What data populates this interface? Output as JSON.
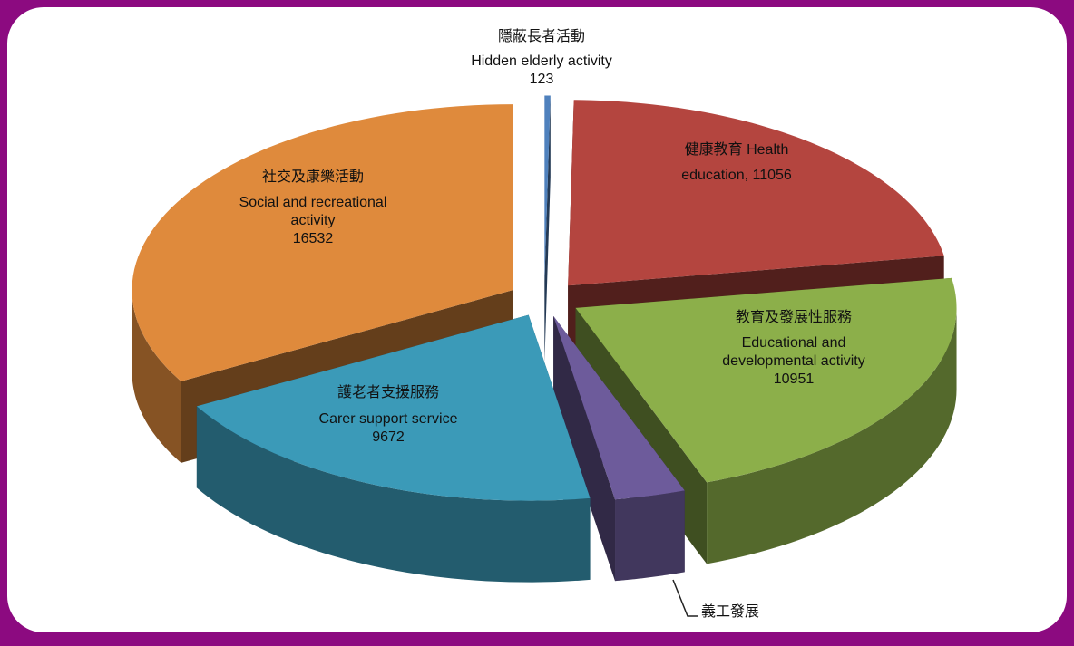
{
  "chart_data": {
    "type": "pie",
    "slices": [
      {
        "lines": [
          "隱蔽長者活動",
          "Hidden elderly activity"
        ],
        "value": 123,
        "value_label": "123",
        "color": "#4f81bd"
      },
      {
        "lines": [
          "健康教育 Health",
          "education,"
        ],
        "value": 11056,
        "value_label": "11056",
        "color": "#b4453f"
      },
      {
        "lines": [
          "教育及發展性服務",
          "Educational and",
          "developmental activity"
        ],
        "value": 10951,
        "value_label": "10951",
        "color": "#8caf4a"
      },
      {
        "lines": [
          "義工發展"
        ],
        "value": 1500,
        "color": "#6d5b9b"
      },
      {
        "lines": [
          "護老者支援服務",
          "Carer support service"
        ],
        "value": 9672,
        "value_label": "9672",
        "color": "#3b9ab8"
      },
      {
        "lines": [
          "社交及康樂活動",
          "Social and recreational",
          "activity"
        ],
        "value": 16532,
        "value_label": "16532",
        "color": "#df8a3c"
      }
    ]
  }
}
